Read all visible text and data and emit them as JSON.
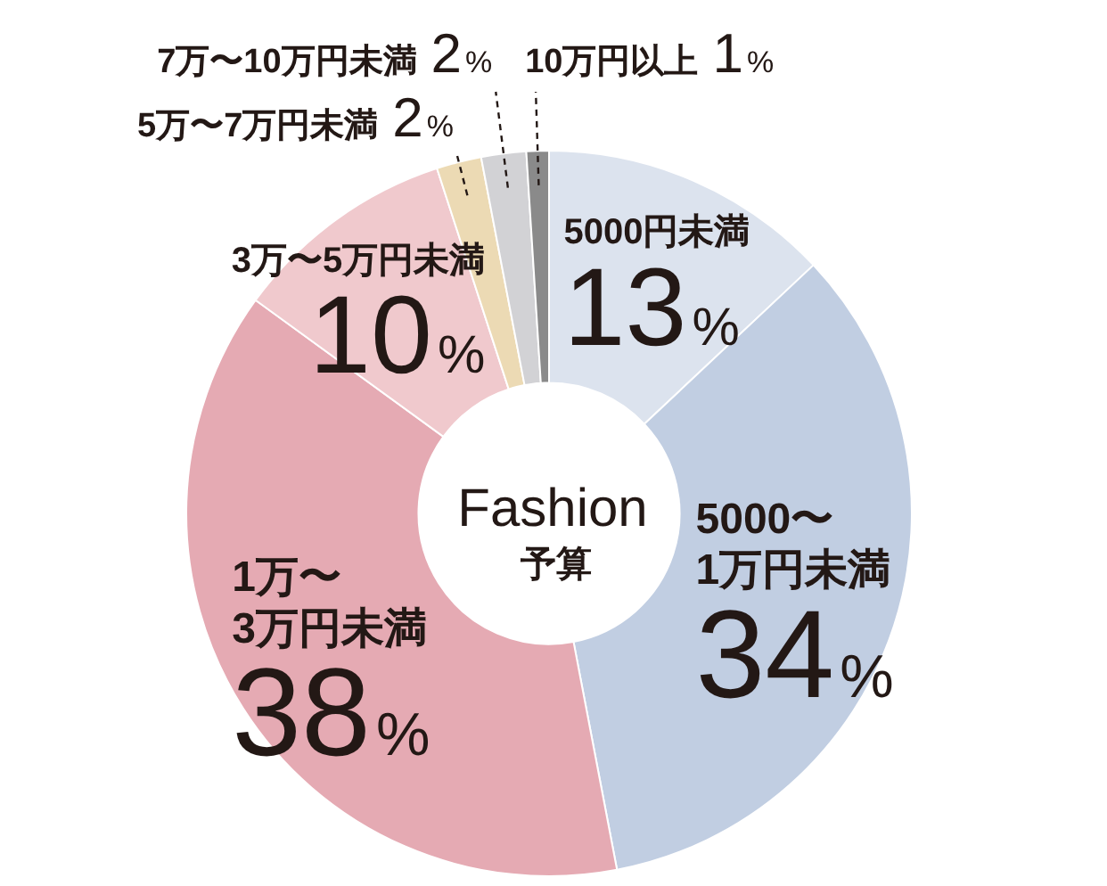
{
  "chart_data": {
    "type": "donut",
    "title": "Fashion",
    "subtitle": "予算",
    "categories": [
      "5000円未満",
      "5000〜1万円未満",
      "1万〜3万円未満",
      "3万〜5万円未満",
      "5万〜7万円未満",
      "7万〜10万円未満",
      "10万円以上"
    ],
    "values": [
      13,
      34,
      38,
      10,
      2,
      2,
      1
    ],
    "colors": [
      "#dce3ee",
      "#c1cee2",
      "#e5aab3",
      "#f0c9cd",
      "#ecdab4",
      "#d2d2d5",
      "#8a8a8a"
    ],
    "value_labels": [
      "13%",
      "34%",
      "38%",
      "10%",
      "2%",
      "2%",
      "1%"
    ]
  }
}
